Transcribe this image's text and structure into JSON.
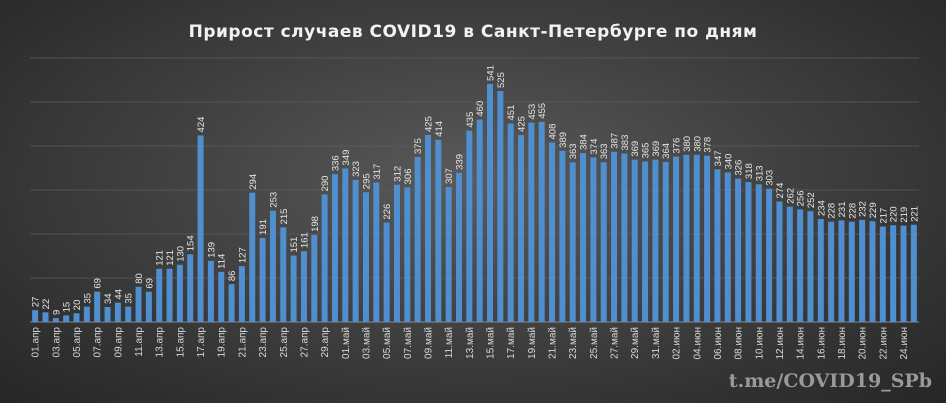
{
  "chart_data": {
    "type": "bar",
    "title": "Прирост случаев COVID19 в Санкт-Петербурге по дням",
    "xlabel": "",
    "ylabel": "",
    "ylim": [
      0,
      600
    ],
    "grid": true,
    "bar_color": "#4f8fcf",
    "categories": [
      "01.апр",
      "02.апр",
      "03.апр",
      "04.апр",
      "05.апр",
      "06.апр",
      "07.апр",
      "08.апр",
      "09.апр",
      "10.апр",
      "11.апр",
      "12.апр",
      "13.апр",
      "14.апр",
      "15.апр",
      "16.апр",
      "17.апр",
      "18.апр",
      "19.апр",
      "20.апр",
      "21.апр",
      "22.апр",
      "23.апр",
      "24.апр",
      "25.апр",
      "26.апр",
      "27.апр",
      "28.апр",
      "29.апр",
      "30.апр",
      "01.май",
      "02.май",
      "03.май",
      "04.май",
      "05.май",
      "06.май",
      "07.май",
      "08.май",
      "09.май",
      "10.май",
      "11.май",
      "12.май",
      "13.май",
      "14.май",
      "15.май",
      "16.май",
      "17.май",
      "18.май",
      "19.май",
      "20.май",
      "21.май",
      "22.май",
      "23.май",
      "24.май",
      "25.май",
      "26.май",
      "27.май",
      "28.май",
      "29.май",
      "30.май",
      "31.май",
      "01.июн",
      "02.июн",
      "03.июн",
      "04.июн",
      "05.июн",
      "06.июн",
      "07.июн",
      "08.июн",
      "09.июн",
      "10.июн",
      "11.июн",
      "12.июн",
      "13.июн",
      "14.июн",
      "15.июн",
      "16.июн",
      "17.июн",
      "18.июн",
      "19.июн",
      "20.июн",
      "21.июн",
      "22.июн",
      "23.июн",
      "24.июн",
      "25.июн"
    ],
    "values": [
      27,
      22,
      9,
      15,
      20,
      35,
      69,
      34,
      44,
      35,
      80,
      69,
      121,
      121,
      130,
      154,
      424,
      139,
      114,
      86,
      127,
      294,
      191,
      253,
      215,
      151,
      161,
      198,
      290,
      336,
      349,
      323,
      295,
      317,
      226,
      312,
      306,
      375,
      425,
      414,
      307,
      339,
      435,
      460,
      541,
      525,
      451,
      425,
      453,
      455,
      408,
      389,
      363,
      384,
      374,
      363,
      387,
      383,
      369,
      365,
      369,
      364,
      376,
      380,
      380,
      378,
      347,
      340,
      326,
      318,
      313,
      303,
      274,
      262,
      256,
      252,
      234,
      228,
      231,
      228,
      232,
      229,
      217,
      220,
      219,
      221
    ],
    "tick_labels": [
      "01.апр",
      "03.апр",
      "05.апр",
      "07.апр",
      "09.апр",
      "11.апр",
      "13.апр",
      "15.апр",
      "17.апр",
      "19.апр",
      "21.апр",
      "23.апр",
      "25.апр",
      "27.апр",
      "29.апр",
      "01.май",
      "03.май",
      "05.май",
      "07.май",
      "09.май",
      "11.май",
      "13.май",
      "15.май",
      "17.май",
      "19.май",
      "21.май",
      "23.май",
      "25.май",
      "27.май",
      "29.май",
      "31.май",
      "02.июн",
      "04.июн",
      "06.июн",
      "08.июн",
      "10.июн",
      "12.июн",
      "14.июн",
      "16.июн",
      "18.июн",
      "20.июн",
      "22.июн",
      "24.июн"
    ]
  },
  "watermark": "t.me/COVID19_SPb"
}
